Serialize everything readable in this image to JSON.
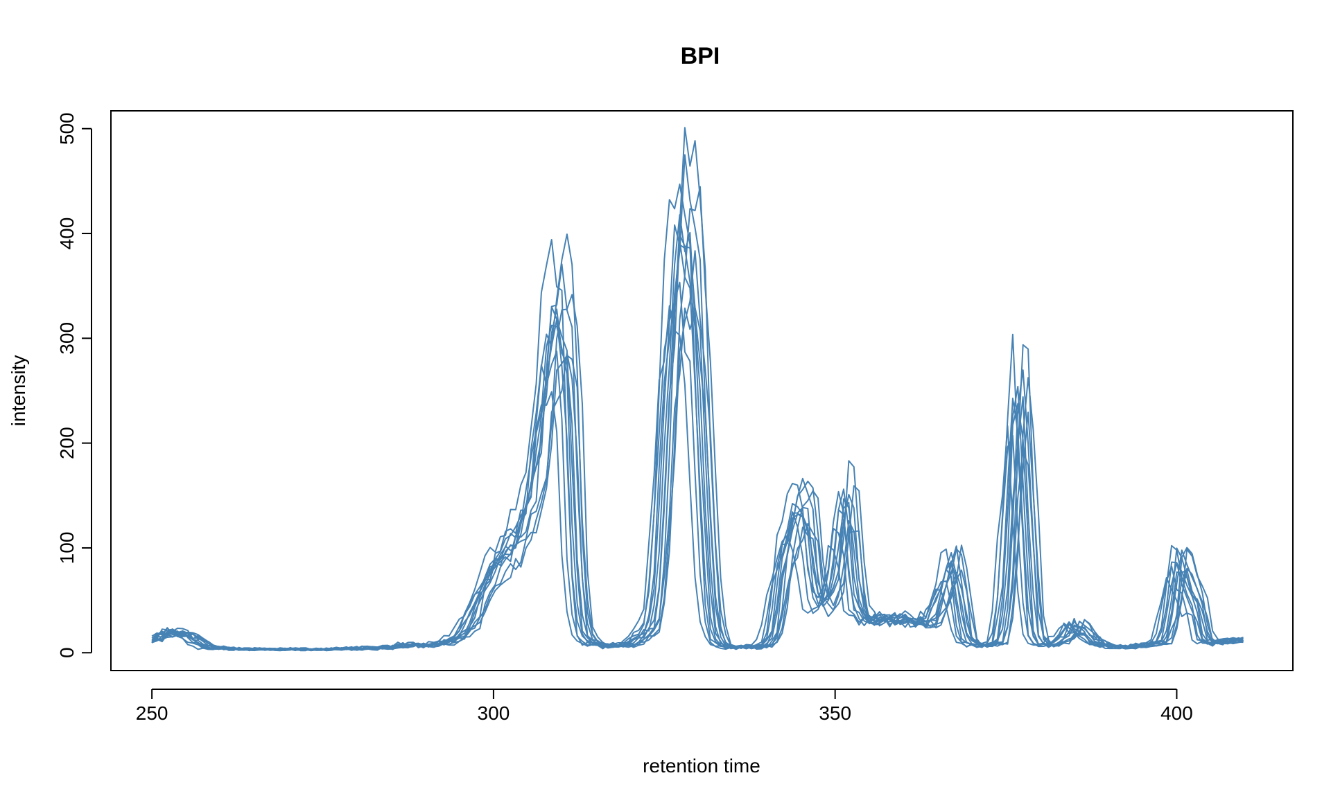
{
  "chart_data": {
    "type": "line",
    "title": "BPI",
    "xlabel": "retention time",
    "ylabel": "intensity",
    "xlim": [
      244,
      417
    ],
    "ylim": [
      -17,
      517
    ],
    "xticks": [
      250,
      300,
      350,
      400
    ],
    "yticks": [
      0,
      100,
      200,
      300,
      400,
      500
    ],
    "color": "#4682B4",
    "grid": false,
    "legend": "none",
    "base_profile": {
      "x": [
        250,
        252,
        254,
        256,
        258,
        260,
        265,
        270,
        275,
        280,
        285,
        288,
        290,
        292,
        294,
        296,
        298,
        300,
        302,
        304,
        306,
        307,
        308,
        309,
        310,
        311,
        312,
        313,
        314,
        316,
        318,
        320,
        321,
        322,
        323,
        324,
        325,
        326,
        327,
        328,
        329,
        330,
        331,
        332,
        333,
        334,
        336,
        338,
        340,
        341,
        342,
        343,
        344,
        345,
        346,
        347,
        348,
        349,
        350,
        351,
        352,
        353,
        354,
        356,
        358,
        360,
        362,
        364,
        365,
        366,
        367,
        368,
        369,
        370,
        372,
        374,
        375,
        376,
        377,
        378,
        379,
        380,
        382,
        384,
        385,
        386,
        388,
        390,
        392,
        394,
        396,
        398,
        399,
        400,
        401,
        402,
        403,
        404,
        406,
        408,
        410
      ],
      "y": [
        12,
        18,
        20,
        14,
        6,
        4,
        3,
        3,
        3,
        4,
        5,
        8,
        7,
        8,
        12,
        22,
        55,
        85,
        100,
        120,
        160,
        230,
        300,
        320,
        330,
        290,
        90,
        20,
        10,
        7,
        6,
        8,
        12,
        18,
        25,
        70,
        200,
        320,
        400,
        420,
        380,
        300,
        140,
        30,
        10,
        6,
        5,
        5,
        8,
        20,
        80,
        110,
        130,
        150,
        130,
        60,
        45,
        55,
        70,
        150,
        140,
        55,
        35,
        30,
        35,
        30,
        28,
        30,
        45,
        70,
        95,
        60,
        15,
        8,
        6,
        10,
        60,
        200,
        270,
        140,
        20,
        8,
        7,
        18,
        28,
        22,
        10,
        6,
        5,
        6,
        8,
        10,
        40,
        95,
        80,
        60,
        45,
        12,
        9,
        12,
        12
      ]
    },
    "series_count": 12,
    "series_variations": [
      {
        "dx": 0.0,
        "scale": 1.0
      },
      {
        "dx": -1.2,
        "scale": 0.85
      },
      {
        "dx": 1.0,
        "scale": 1.18
      },
      {
        "dx": -0.6,
        "scale": 0.92
      },
      {
        "dx": 0.6,
        "scale": 1.08
      },
      {
        "dx": -1.8,
        "scale": 0.75
      },
      {
        "dx": 1.6,
        "scale": 1.05
      },
      {
        "dx": 0.3,
        "scale": 0.95
      },
      {
        "dx": -0.9,
        "scale": 1.12
      },
      {
        "dx": 1.3,
        "scale": 0.88
      },
      {
        "dx": -0.3,
        "scale": 1.0
      },
      {
        "dx": 0.9,
        "scale": 0.8
      }
    ]
  }
}
